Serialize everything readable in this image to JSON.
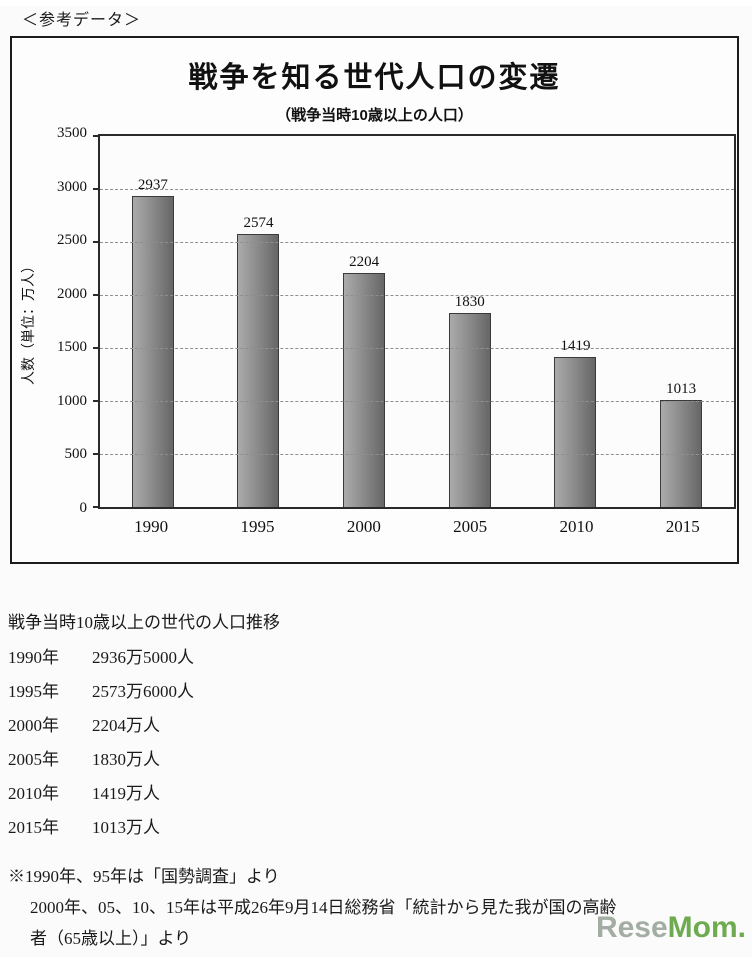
{
  "page": {
    "header_label": "＜参考データ＞"
  },
  "chart_data": {
    "type": "bar",
    "title": "戦争を知る世代人口の変遷",
    "subtitle": "（戦争当時10歳以上の人口）",
    "categories": [
      "1990",
      "1995",
      "2000",
      "2005",
      "2010",
      "2015"
    ],
    "values": [
      2937,
      2574,
      2204,
      1830,
      1419,
      1013
    ],
    "xlabel": "",
    "ylabel": "人数（単位：万人）",
    "ylim": [
      0,
      3500
    ],
    "ytick_step": 500,
    "grid": true,
    "grid_style": "dashed",
    "bar_color": "#8d8d8d",
    "legend_position": "none"
  },
  "details": {
    "heading": "戦争当時10歳以上の世代の人口推移",
    "rows": [
      {
        "year": "1990年",
        "value": "2936万5000人"
      },
      {
        "year": "1995年",
        "value": "2573万6000人"
      },
      {
        "year": "2000年",
        "value": "2204万人"
      },
      {
        "year": "2005年",
        "value": "1830万人"
      },
      {
        "year": "2010年",
        "value": "1419万人"
      },
      {
        "year": "2015年",
        "value": "1013万人"
      }
    ]
  },
  "footnotes": [
    "※1990年、95年は「国勢調査」より",
    "2000年、05、10、15年は平成26年9月14日総務省「統計から見た我が国の高齢",
    "者（65歳以上）」より"
  ],
  "watermark": {
    "part1": "Rese",
    "part2": "Mom."
  }
}
